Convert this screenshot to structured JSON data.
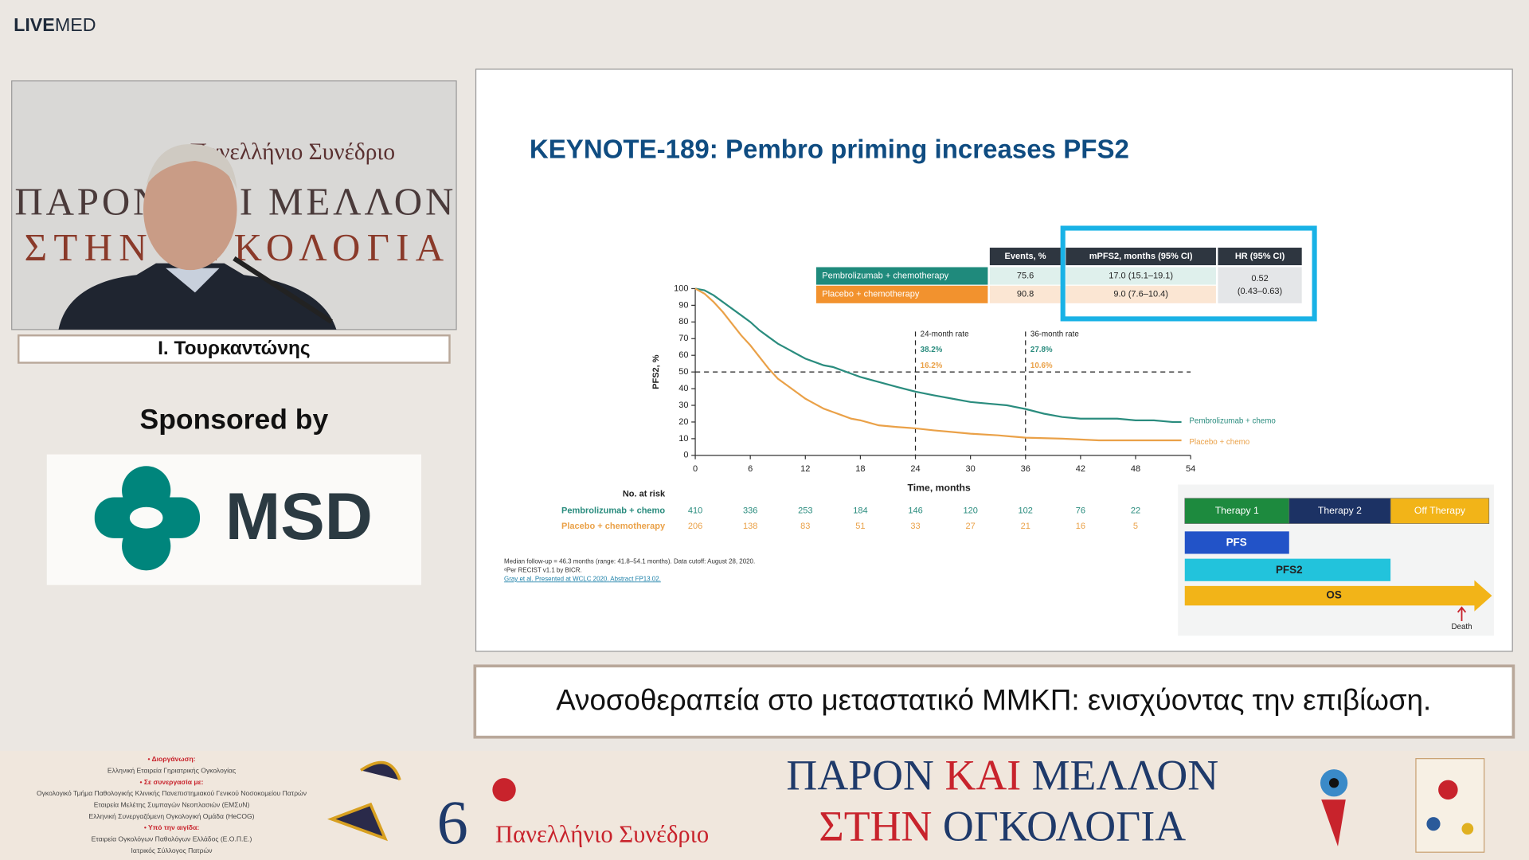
{
  "header": {
    "logo_bold": "LIVE",
    "logo_light": "MED"
  },
  "video": {
    "backdrop_lines": [
      "Πανελλήνιο Συνέδριο",
      "ΠΑΡΟΝ ΚΑΙ ΜΕΛΛΟΝ",
      "ΣΤΗΝ ΟΓΚΟΛΟΓΙΑ"
    ]
  },
  "speaker": {
    "name": "Ι. Τουρκαντώνης"
  },
  "sponsor": {
    "label": "Sponsored by",
    "logo_text": "MSD"
  },
  "slide": {
    "title": "KEYNOTE-189: Pembro priming increases PFS2",
    "table": {
      "columns": [
        "Events, %",
        "mPFS2, months (95% CI)",
        "HR (95% CI)"
      ],
      "rows": [
        [
          "Pembrolizumab + chemotherapy",
          "75.6",
          "17.0 (15.1–19.1)"
        ],
        [
          "Placebo + chemotherapy",
          "90.8",
          "9.0 (7.6–10.4)"
        ]
      ],
      "hr": [
        "0.52",
        "(0.43–0.63)"
      ]
    },
    "chart": {
      "type": "line",
      "ylabel": "PFS2, %",
      "xlabel": "Time, months",
      "xlim": [
        0,
        54
      ],
      "xticks": [
        0,
        6,
        12,
        18,
        24,
        30,
        36,
        42,
        48,
        54
      ],
      "ylim": [
        0,
        100
      ],
      "yticks": [
        0,
        10,
        20,
        30,
        40,
        50,
        60,
        70,
        80,
        90,
        100
      ],
      "reference_y": 50,
      "series": [
        {
          "name": "Pembrolizumab + chemo",
          "color": "#2a8c7e",
          "x": [
            0,
            1,
            2,
            3,
            4,
            5,
            6,
            7,
            8,
            9,
            10,
            11,
            12,
            13,
            14,
            15,
            16,
            17,
            18,
            20,
            22,
            24,
            26,
            28,
            30,
            32,
            34,
            36,
            38,
            40,
            42,
            46,
            48,
            50,
            52,
            53
          ],
          "values": [
            100,
            99,
            96,
            92,
            88,
            84,
            80,
            75,
            71,
            67,
            64,
            61,
            58,
            56,
            54,
            53,
            51,
            49,
            47,
            44,
            41,
            38.2,
            36,
            34,
            32,
            31,
            30,
            27.8,
            25,
            23,
            22,
            22,
            21,
            21,
            20,
            20
          ]
        },
        {
          "name": "Placebo + chemo",
          "color": "#eaa148",
          "x": [
            0,
            1,
            2,
            3,
            4,
            5,
            6,
            7,
            8,
            9,
            10,
            11,
            12,
            13,
            14,
            15,
            16,
            17,
            18,
            20,
            22,
            24,
            26,
            28,
            30,
            33,
            36,
            40,
            44,
            48,
            51,
            53
          ],
          "values": [
            100,
            97,
            92,
            86,
            79,
            72,
            66,
            59,
            52,
            46,
            42,
            38,
            34,
            31,
            28,
            26,
            24,
            22,
            21,
            18,
            17,
            16.2,
            15,
            14,
            13,
            12,
            10.6,
            10,
            9,
            9,
            9,
            9
          ]
        }
      ],
      "annotations": [
        {
          "x": 24,
          "label": "24-month rate",
          "rates": [
            "38.2%",
            "16.2%"
          ]
        },
        {
          "x": 36,
          "label": "36-month rate",
          "rates": [
            "27.8%",
            "10.6%"
          ]
        }
      ]
    },
    "at_risk": {
      "label": "No. at risk",
      "rows": [
        {
          "name": "Pembrolizumab + chemo",
          "values": [
            "410",
            "336",
            "253",
            "184",
            "146",
            "120",
            "102",
            "76",
            "22"
          ]
        },
        {
          "name": "Placebo + chemotherapy",
          "values": [
            "206",
            "138",
            "83",
            "51",
            "33",
            "27",
            "21",
            "16",
            "5"
          ]
        }
      ]
    },
    "footnotes": [
      "Median follow-up = 46.3 months (range: 41.8–54.1 months). Data cutoff: August 28, 2020.",
      "ᵃPer RECIST v1.1 by BICR.",
      "Gray et al. Presented at WCLC 2020. Abstract FP13.02."
    ],
    "diagram": {
      "phases": [
        "Therapy 1",
        "Therapy 2",
        "Off Therapy"
      ],
      "bars": [
        "PFS",
        "PFS2",
        "OS"
      ],
      "event": "Death"
    }
  },
  "caption": "Ανοσοθεραπεία στο μεταστατικό ΜΜΚΠ: ενισχύοντας την επιβίωση.",
  "footer": {
    "credits": [
      "• Διοργάνωση:",
      "Ελληνική Εταιρεία Γηριατρικής Ογκολογίας",
      "• Σε συνεργασία με:",
      "Ογκολογικό Τμήμα Παθολογικής Κλινικής Πανεπιστημιακού Γενικού Νοσοκομείου Πατρών",
      "Εταιρεία Μελέτης Συμπαγών Νεοπλασιών (ΕΜΣυΝ)",
      "Ελληνική Συνεργαζόμενη Ογκολογική Ομάδα (HeCOG)",
      "• Υπό την αιγίδα:",
      "Εταιρεία Ογκολόγων Παθολόγων Ελλάδος (Ε.Ο.Π.Ε.)",
      "Ιατρικός Σύλλογος Πατρών"
    ],
    "congress": {
      "number": "6",
      "name": "Πανελλήνιο Συνέδριο",
      "line1": [
        "ΠΑΡΟΝ",
        "ΚΑΙ",
        "ΜΕΛΛΟΝ"
      ],
      "line2": [
        "ΣΤΗΝ",
        "ΟΓΚΟΛΟΓΙΑ"
      ]
    }
  }
}
